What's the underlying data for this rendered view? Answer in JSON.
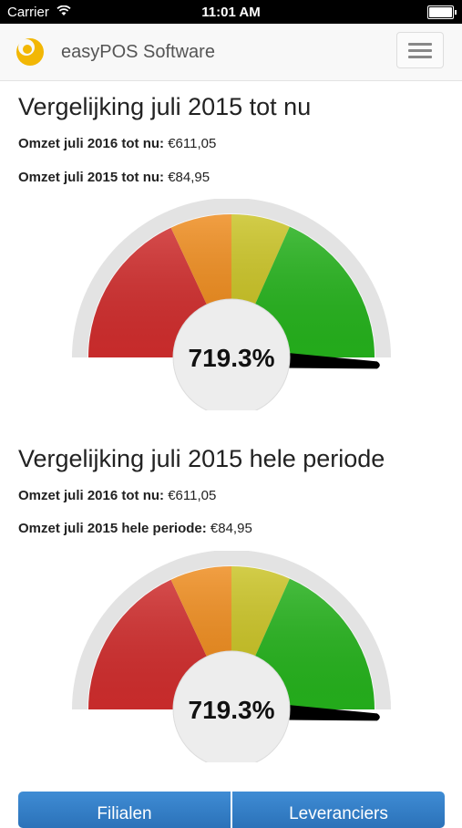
{
  "status": {
    "carrier": "Carrier",
    "time": "11:01 AM"
  },
  "nav": {
    "brand": "easyPOS Software",
    "logo_icon": "easypos-logo-icon",
    "menu_icon": "hamburger-menu-icon"
  },
  "colors": {
    "red": "#d12d2d",
    "orange": "#ee8a1a",
    "yellow": "#c9c221",
    "green": "#25b31c",
    "needle": "#000000",
    "button": "#3377c0"
  },
  "sections": [
    {
      "title": "Vergelijking juli 2015 tot nu",
      "stat1_label": "Omzet juli 2016 tot nu:",
      "stat1_value": "€611,05",
      "stat2_label": "Omzet juli 2015 tot nu:",
      "stat2_value": "€84,95",
      "gauge_value": 719.3,
      "gauge_text": "719.3%"
    },
    {
      "title": "Vergelijking juli 2015 hele periode",
      "stat1_label": "Omzet juli 2016 tot nu:",
      "stat1_value": "€611,05",
      "stat2_label": "Omzet juli 2015 hele periode:",
      "stat2_value": "€84,95",
      "gauge_value": 719.3,
      "gauge_text": "719.3%"
    }
  ],
  "buttons": {
    "filialen": "Filialen",
    "leveranciers": "Leveranciers"
  }
}
